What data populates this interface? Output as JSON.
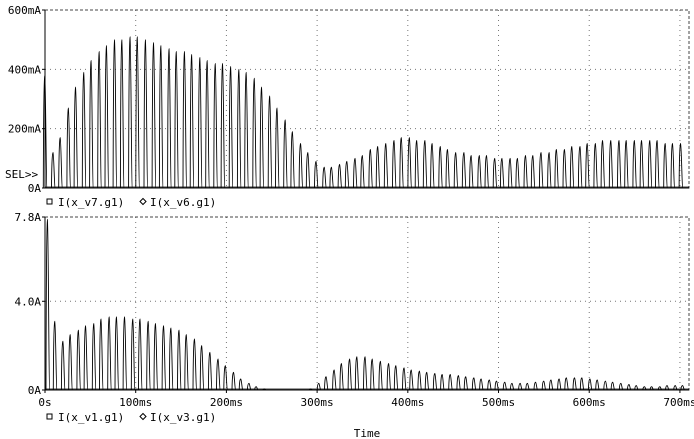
{
  "chart_data": [
    {
      "type": "line",
      "title": "",
      "ylabel": "",
      "xlabel": "",
      "selection_marker": "SEL>>",
      "y_unit": "A",
      "ylim": [
        0,
        0.6
      ],
      "xlim": [
        0,
        0.71
      ],
      "y_ticks": [
        {
          "value": 0.0,
          "label": "0A"
        },
        {
          "value": 0.2,
          "label": "200mA"
        },
        {
          "value": 0.4,
          "label": "400mA"
        },
        {
          "value": 0.6,
          "label": "600mA"
        }
      ],
      "grid": "dotted",
      "legend": [
        {
          "marker": "square",
          "name": "I(x_v7.g1)"
        },
        {
          "marker": "diamond",
          "name": "I(x_v6.g1)"
        }
      ],
      "series": [
        {
          "name": "I(x_v7.g1)",
          "pulse_period_s": 0.00855,
          "x": [
            0.0,
            0.009,
            0.017,
            0.026,
            0.034,
            0.043,
            0.051,
            0.06,
            0.068,
            0.077,
            0.085,
            0.094,
            0.102,
            0.111,
            0.12,
            0.128,
            0.137,
            0.145,
            0.154,
            0.162,
            0.171,
            0.179,
            0.188,
            0.196,
            0.205,
            0.214,
            0.222,
            0.231,
            0.239,
            0.248,
            0.256,
            0.265,
            0.273,
            0.282,
            0.29,
            0.299,
            0.308,
            0.316,
            0.325,
            0.333,
            0.342,
            0.35,
            0.359,
            0.367,
            0.376,
            0.385,
            0.393,
            0.402,
            0.41,
            0.419,
            0.427,
            0.436,
            0.444,
            0.453,
            0.462,
            0.47,
            0.479,
            0.487,
            0.496,
            0.504,
            0.513,
            0.521,
            0.53,
            0.538,
            0.547,
            0.556,
            0.564,
            0.573,
            0.581,
            0.59,
            0.598,
            0.607,
            0.615,
            0.624,
            0.633,
            0.641,
            0.65,
            0.658,
            0.667,
            0.675,
            0.684,
            0.692,
            0.701
          ],
          "peak_values": [
            0.38,
            0.12,
            0.17,
            0.27,
            0.34,
            0.39,
            0.43,
            0.46,
            0.48,
            0.5,
            0.5,
            0.51,
            0.51,
            0.5,
            0.49,
            0.48,
            0.47,
            0.46,
            0.46,
            0.45,
            0.44,
            0.43,
            0.42,
            0.42,
            0.41,
            0.4,
            0.39,
            0.37,
            0.34,
            0.31,
            0.27,
            0.23,
            0.19,
            0.15,
            0.12,
            0.09,
            0.07,
            0.07,
            0.08,
            0.09,
            0.1,
            0.11,
            0.13,
            0.14,
            0.15,
            0.16,
            0.17,
            0.17,
            0.16,
            0.16,
            0.15,
            0.14,
            0.13,
            0.12,
            0.12,
            0.11,
            0.11,
            0.11,
            0.1,
            0.1,
            0.1,
            0.1,
            0.11,
            0.11,
            0.12,
            0.12,
            0.13,
            0.13,
            0.14,
            0.14,
            0.15,
            0.15,
            0.16,
            0.16,
            0.16,
            0.16,
            0.16,
            0.16,
            0.16,
            0.16,
            0.15,
            0.15,
            0.15
          ]
        },
        {
          "name": "I(x_v6.g1)",
          "note": "overlapping",
          "pulse_period_s": 0.00855,
          "x": [],
          "peak_values": []
        }
      ]
    },
    {
      "type": "line",
      "title": "",
      "ylabel": "",
      "xlabel": "Time",
      "y_unit": "A",
      "ylim": [
        0,
        7.8
      ],
      "xlim": [
        0,
        0.71
      ],
      "y_ticks": [
        {
          "value": 0.0,
          "label": "0A"
        },
        {
          "value": 4.0,
          "label": "4.0A"
        },
        {
          "value": 7.8,
          "label": "7.8A"
        }
      ],
      "x_ticks": [
        {
          "value": 0.0,
          "label": "0s"
        },
        {
          "value": 0.1,
          "label": "100ms"
        },
        {
          "value": 0.2,
          "label": "200ms"
        },
        {
          "value": 0.3,
          "label": "300ms"
        },
        {
          "value": 0.4,
          "label": "400ms"
        },
        {
          "value": 0.5,
          "label": "500ms"
        },
        {
          "value": 0.6,
          "label": "600ms"
        },
        {
          "value": 0.7,
          "label": "700ms"
        }
      ],
      "grid": "dotted",
      "legend": [
        {
          "marker": "square",
          "name": "I(x_v1.g1)"
        },
        {
          "marker": "diamond",
          "name": "I(x_v3.g1)"
        }
      ],
      "series": [
        {
          "name": "I(x_v1.g1)",
          "pulse_period_s": 0.00855,
          "x": [
            0.003,
            0.011,
            0.02,
            0.028,
            0.037,
            0.045,
            0.054,
            0.062,
            0.071,
            0.079,
            0.088,
            0.097,
            0.105,
            0.114,
            0.122,
            0.131,
            0.139,
            0.148,
            0.156,
            0.165,
            0.173,
            0.182,
            0.191,
            0.199,
            0.208,
            0.216,
            0.225,
            0.233,
            0.242,
            0.25,
            0.259,
            0.267,
            0.276,
            0.284,
            0.293,
            0.302,
            0.31,
            0.319,
            0.327,
            0.336,
            0.344,
            0.353,
            0.361,
            0.37,
            0.379,
            0.387,
            0.396,
            0.404,
            0.413,
            0.421,
            0.43,
            0.438,
            0.447,
            0.456,
            0.464,
            0.473,
            0.481,
            0.49,
            0.498,
            0.507,
            0.515,
            0.524,
            0.532,
            0.541,
            0.55,
            0.558,
            0.567,
            0.575,
            0.584,
            0.592,
            0.601,
            0.609,
            0.618,
            0.626,
            0.635,
            0.644,
            0.652,
            0.661,
            0.669,
            0.678,
            0.686,
            0.695,
            0.703
          ],
          "peak_values": [
            7.7,
            3.1,
            2.2,
            2.5,
            2.7,
            2.9,
            3.0,
            3.2,
            3.3,
            3.3,
            3.3,
            3.2,
            3.2,
            3.1,
            3.0,
            2.9,
            2.8,
            2.7,
            2.5,
            2.3,
            2.0,
            1.7,
            1.4,
            1.1,
            0.8,
            0.5,
            0.3,
            0.15,
            0.05,
            0.0,
            0.0,
            0.0,
            0.0,
            0.0,
            0.05,
            0.3,
            0.6,
            0.9,
            1.2,
            1.4,
            1.5,
            1.5,
            1.4,
            1.3,
            1.2,
            1.1,
            1.0,
            0.9,
            0.85,
            0.8,
            0.75,
            0.7,
            0.7,
            0.65,
            0.6,
            0.55,
            0.5,
            0.45,
            0.4,
            0.35,
            0.3,
            0.3,
            0.3,
            0.35,
            0.4,
            0.45,
            0.5,
            0.55,
            0.55,
            0.55,
            0.5,
            0.45,
            0.4,
            0.35,
            0.3,
            0.25,
            0.2,
            0.15,
            0.15,
            0.15,
            0.2,
            0.2,
            0.2
          ]
        },
        {
          "name": "I(x_v3.g1)",
          "note": "overlapping",
          "pulse_period_s": 0.00855,
          "x": [],
          "peak_values": []
        }
      ]
    }
  ]
}
